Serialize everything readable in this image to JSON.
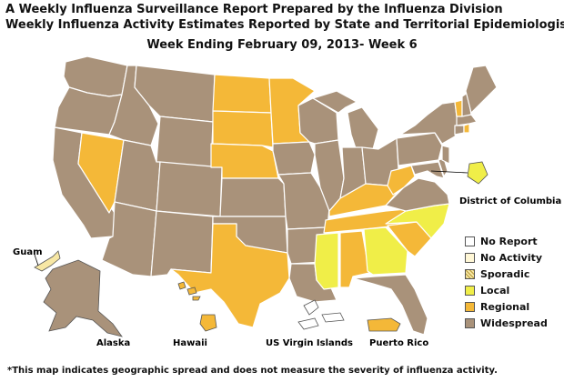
{
  "header": {
    "title_line1": "A Weekly Influenza Surveillance Report Prepared by the Influenza Division",
    "title_line2": "Weekly Influenza Activity Estimates Reported by State and Territorial Epidemiologists*",
    "week": "Week Ending February 09, 2013- Week 6"
  },
  "colors": {
    "no_report": "#ffffff",
    "no_activity": "#fff7d6",
    "sporadic": "#f7e7a4",
    "local": "#f0ee48",
    "regional": "#f4b838",
    "widespread": "#a9927a",
    "border": "#ffffff",
    "outline": "#555555"
  },
  "legend": [
    {
      "key": "no_report",
      "label": "No Report"
    },
    {
      "key": "no_activity",
      "label": "No Activity"
    },
    {
      "key": "sporadic",
      "label": "Sporadic"
    },
    {
      "key": "local",
      "label": "Local"
    },
    {
      "key": "regional",
      "label": "Regional"
    },
    {
      "key": "widespread",
      "label": "Widespread"
    }
  ],
  "region_labels": {
    "guam": "Guam",
    "alaska": "Alaska",
    "hawaii": "Hawaii",
    "usvi": "US Virgin Islands",
    "puerto_rico": "Puerto Rico",
    "dc": "District of Columbia"
  },
  "footnote": "*This map indicates geographic spread and does not measure the severity of influenza activity."
}
